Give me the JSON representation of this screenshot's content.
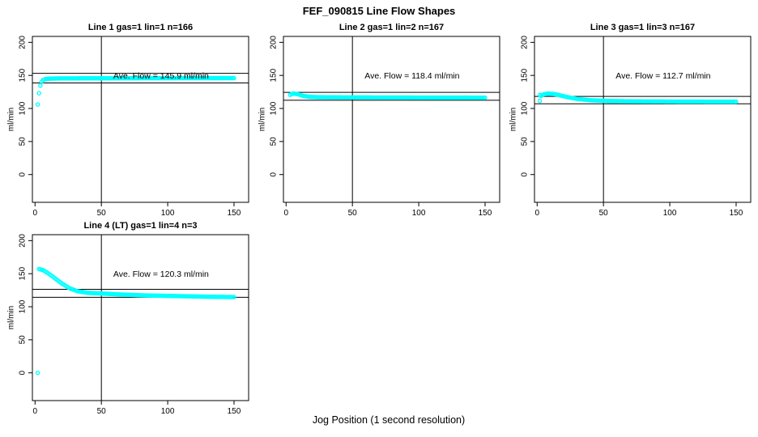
{
  "page": {
    "title": "FEF_090815  Line Flow Shapes",
    "xlabel": "Jog Position (1 second resolution)"
  },
  "style": {
    "point_color": "#00ffff",
    "axis_color": "#000000",
    "text_color": "#000000",
    "background": "#ffffff"
  },
  "chart_data": [
    {
      "type": "scatter",
      "title": "Line 1 gas=1 lin=1 n=166",
      "ylabel": "ml/min",
      "annotation": "Ave. Flow =  145.9  ml/min",
      "ave_flow": 145.9,
      "n": 166,
      "ref_line_upper": 153.2,
      "ref_line_lower": 138.6,
      "vline_x": 50,
      "xticks": [
        0,
        50,
        100,
        150
      ],
      "yticks": [
        0,
        50,
        100,
        150,
        200
      ],
      "xlim": [
        -2,
        161
      ],
      "ylim": [
        -42,
        209
      ],
      "annotation_pos": [
        95,
        150
      ],
      "series_keyframes": [
        [
          2,
          106
        ],
        [
          3,
          123
        ],
        [
          4,
          134.5
        ],
        [
          5,
          140.5
        ],
        [
          6,
          143
        ],
        [
          8,
          144.5
        ],
        [
          12,
          145.2
        ],
        [
          20,
          145.5
        ],
        [
          40,
          145.6
        ],
        [
          80,
          145.8
        ],
        [
          120,
          145.9
        ],
        [
          150,
          145.9
        ]
      ],
      "isolated_points": []
    },
    {
      "type": "scatter",
      "title": "Line 2 gas=1 lin=2 n=167",
      "ylabel": "ml/min",
      "annotation": "Ave. Flow =  118.4  ml/min",
      "ave_flow": 118.4,
      "n": 167,
      "ref_line_upper": 124.3,
      "ref_line_lower": 112.5,
      "vline_x": 50,
      "xticks": [
        0,
        50,
        100,
        150
      ],
      "yticks": [
        0,
        50,
        100,
        150,
        200
      ],
      "xlim": [
        -2,
        161
      ],
      "ylim": [
        -42,
        209
      ],
      "annotation_pos": [
        95,
        150
      ],
      "series_keyframes": [
        [
          3,
          120.5
        ],
        [
          4,
          122
        ],
        [
          6,
          122.5
        ],
        [
          9,
          121.5
        ],
        [
          13,
          119
        ],
        [
          18,
          117.5
        ],
        [
          25,
          117
        ],
        [
          40,
          116.8
        ],
        [
          70,
          116.6
        ],
        [
          110,
          116.4
        ],
        [
          150,
          116.3
        ]
      ],
      "isolated_points": []
    },
    {
      "type": "scatter",
      "title": "Line 3 gas=1 lin=3 n=167",
      "ylabel": "ml/min",
      "annotation": "Ave. Flow =  112.7  ml/min",
      "ave_flow": 112.7,
      "n": 167,
      "ref_line_upper": 118.3,
      "ref_line_lower": 107.1,
      "vline_x": 50,
      "xticks": [
        0,
        50,
        100,
        150
      ],
      "yticks": [
        0,
        50,
        100,
        150,
        200
      ],
      "xlim": [
        -2,
        161
      ],
      "ylim": [
        -42,
        209
      ],
      "annotation_pos": [
        95,
        150
      ],
      "series_keyframes": [
        [
          3,
          119
        ],
        [
          5,
          121.5
        ],
        [
          8,
          122.5
        ],
        [
          12,
          122
        ],
        [
          16,
          120.5
        ],
        [
          22,
          117.5
        ],
        [
          30,
          114.5
        ],
        [
          40,
          112.5
        ],
        [
          55,
          111.3
        ],
        [
          75,
          110.7
        ],
        [
          110,
          110.4
        ],
        [
          150,
          110.3
        ]
      ],
      "isolated_points": [
        [
          2,
          120.5
        ],
        [
          2,
          111.5
        ]
      ]
    },
    {
      "type": "scatter",
      "title": "Line 4 (LT) gas=1 lin=4 n=3",
      "ylabel": "ml/min",
      "annotation": "Ave. Flow =  120.3  ml/min",
      "ave_flow": 120.3,
      "n": 3,
      "ref_line_upper": 126.3,
      "ref_line_lower": 114.3,
      "vline_x": 50,
      "xticks": [
        0,
        50,
        100,
        150
      ],
      "yticks": [
        0,
        50,
        100,
        150,
        200
      ],
      "xlim": [
        -2,
        161
      ],
      "ylim": [
        -42,
        209
      ],
      "annotation_pos": [
        95,
        150
      ],
      "series_keyframes": [
        [
          3,
          157
        ],
        [
          6,
          155.5
        ],
        [
          10,
          150.5
        ],
        [
          15,
          143
        ],
        [
          20,
          135.5
        ],
        [
          26,
          128
        ],
        [
          32,
          123.5
        ],
        [
          40,
          121
        ],
        [
          50,
          120
        ],
        [
          65,
          118.5
        ],
        [
          85,
          117
        ],
        [
          110,
          116
        ],
        [
          135,
          115
        ],
        [
          150,
          114.6
        ]
      ],
      "isolated_points": [
        [
          2,
          0
        ]
      ]
    }
  ]
}
